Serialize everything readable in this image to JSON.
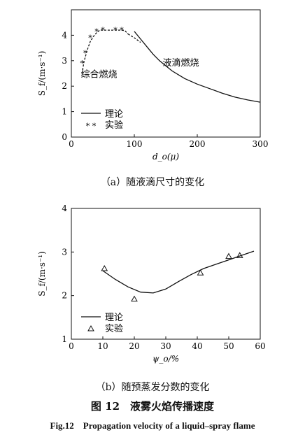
{
  "figure": {
    "number_cn": "图 12",
    "title_cn": "液雾火焰传播速度",
    "title_en": "Fig.12　Propagation velocity of a liquid–spray flame"
  },
  "chart_data": [
    {
      "type": "line",
      "caption": "（a）随液滴尺寸的变化",
      "ylabel": "S_f/(m·s⁻¹)",
      "xlabel": "d_o(μ)",
      "xlim": [
        0,
        300
      ],
      "ylim": [
        0,
        5
      ],
      "x_ticks": [
        "0",
        "100",
        "200",
        "300"
      ],
      "y_ticks": [
        "0",
        "1",
        "2",
        "3",
        "4"
      ],
      "annotations": [
        {
          "text": "综合燃烧",
          "x": 15,
          "y": 2.35
        },
        {
          "text": "液滴燃烧",
          "x": 145,
          "y": 2.8
        }
      ],
      "legend": {
        "placement": "bottom-left",
        "items": [
          {
            "label": "理论",
            "style": "solid-line"
          },
          {
            "label": "实验",
            "style": "star-markers"
          }
        ]
      },
      "series": [
        {
          "name": "理论",
          "style": "dashed",
          "x": [
            17,
            20,
            25,
            30,
            35,
            40,
            45,
            50,
            60,
            70,
            80,
            85,
            90
          ],
          "y": [
            2.5,
            2.95,
            3.4,
            3.75,
            3.95,
            4.1,
            4.2,
            4.2,
            4.2,
            4.2,
            4.2,
            4.18,
            4.05
          ]
        },
        {
          "name": "理论",
          "style": "dashed",
          "x": [
            90,
            100,
            110
          ],
          "y": [
            4.05,
            3.9,
            3.72
          ]
        },
        {
          "name": "理论",
          "style": "solid",
          "x": [
            100,
            110,
            120,
            130,
            140,
            150,
            160,
            180,
            200,
            220,
            240,
            260,
            280,
            300
          ],
          "y": [
            4.15,
            3.85,
            3.55,
            3.25,
            3.0,
            2.8,
            2.6,
            2.3,
            2.08,
            1.9,
            1.72,
            1.57,
            1.46,
            1.37
          ]
        },
        {
          "name": "实验",
          "style": "markers",
          "x": [
            17,
            22,
            30,
            40,
            50,
            70,
            80
          ],
          "y": [
            2.9,
            3.3,
            3.9,
            4.15,
            4.2,
            4.2,
            4.2
          ]
        }
      ]
    },
    {
      "type": "line",
      "caption": "（b）随预蒸发分数的变化",
      "ylabel": "S_f/(m·s⁻¹)",
      "xlabel": "ψ_o/%",
      "xlim": [
        0,
        60
      ],
      "ylim": [
        1,
        4
      ],
      "x_ticks": [
        "0",
        "10",
        "20",
        "30",
        "40",
        "50",
        "60"
      ],
      "y_ticks": [
        "1",
        "2",
        "3",
        "4"
      ],
      "legend": {
        "placement": "bottom-left",
        "items": [
          {
            "label": "理论",
            "style": "solid-line"
          },
          {
            "label": "实验",
            "style": "triangle-markers"
          }
        ]
      },
      "series": [
        {
          "name": "理论",
          "style": "solid",
          "x": [
            10,
            14,
            18,
            22,
            26,
            30,
            34,
            38,
            42,
            46,
            50,
            54,
            58
          ],
          "y": [
            2.57,
            2.37,
            2.2,
            2.08,
            2.06,
            2.15,
            2.32,
            2.48,
            2.62,
            2.72,
            2.82,
            2.92,
            3.02
          ]
        },
        {
          "name": "实验",
          "style": "markers",
          "x": [
            10.5,
            20,
            41,
            50,
            53.5
          ],
          "y": [
            2.62,
            1.92,
            2.52,
            2.9,
            2.92
          ]
        }
      ]
    }
  ]
}
